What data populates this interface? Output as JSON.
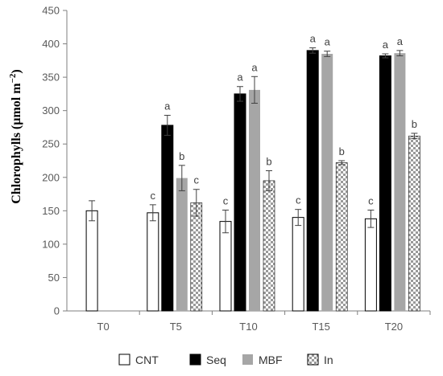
{
  "chart_data": {
    "type": "bar",
    "ylabel": "Chlorophylls (µmol m⁻²)",
    "ylabel_parts": {
      "main": "Chlorophylls (µmol m",
      "sup": "−2",
      "close": ")"
    },
    "ylim": [
      0,
      450
    ],
    "yticks": [
      "0",
      "50",
      "100",
      "150",
      "200",
      "250",
      "300",
      "350",
      "400",
      "450"
    ],
    "categories": [
      "T0",
      "T5",
      "T10",
      "T15",
      "T20"
    ],
    "series": [
      {
        "name": "CNT",
        "values": [
          150,
          147,
          134,
          140,
          138
        ],
        "errors": [
          15,
          12,
          17,
          12,
          13
        ],
        "labels": [
          "",
          "c",
          "c",
          "c",
          "c"
        ],
        "fill": "#ffffff",
        "pattern": "none"
      },
      {
        "name": "Seq",
        "values": [
          null,
          278,
          325,
          390,
          382
        ],
        "errors": [
          null,
          15,
          11,
          4,
          3
        ],
        "labels": [
          "",
          "a",
          "a",
          "a",
          "a"
        ],
        "fill": "#000000",
        "pattern": "none"
      },
      {
        "name": "MBF",
        "values": [
          null,
          199,
          331,
          385,
          386
        ],
        "errors": [
          null,
          19,
          20,
          4,
          4
        ],
        "labels": [
          "",
          "b",
          "a",
          "a",
          "a"
        ],
        "fill": "#a6a6a6",
        "pattern": "none"
      },
      {
        "name": "In",
        "values": [
          null,
          162,
          195,
          222,
          262
        ],
        "errors": [
          null,
          20,
          15,
          3,
          4
        ],
        "labels": [
          "",
          "c",
          "b",
          "b",
          "b"
        ],
        "fill": "#ffffff",
        "pattern": "checker"
      }
    ],
    "grid": false,
    "legend_position": "bottom",
    "colors": {
      "axis": "#7f7f7f",
      "bar_outline": "#000000",
      "checker": "#9a9a9a",
      "error_bar": "#404040"
    }
  }
}
